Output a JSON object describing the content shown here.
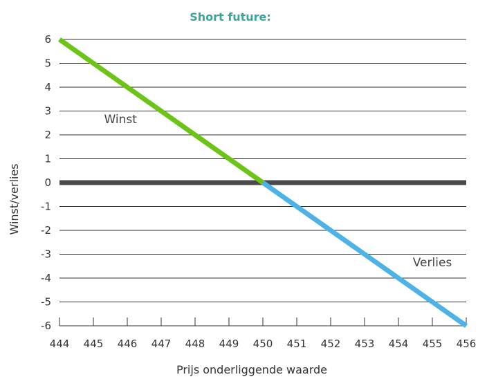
{
  "chart_data": {
    "type": "line",
    "title": "Short future:",
    "xlabel": "Prijs onderliggende waarde",
    "ylabel": "Winst/verlies",
    "x_ticks": [
      444,
      445,
      446,
      447,
      448,
      449,
      450,
      451,
      452,
      453,
      454,
      455,
      456
    ],
    "y_ticks": [
      6,
      5,
      4,
      3,
      2,
      1,
      0,
      -1,
      -2,
      -3,
      -4,
      -5,
      -6
    ],
    "xlim": [
      444,
      456
    ],
    "ylim": [
      -6,
      6
    ],
    "grid": "horizontal",
    "series": [
      {
        "points": [
          [
            444,
            6
          ],
          [
            450,
            0
          ]
        ],
        "color": "#6cc417"
      },
      {
        "points": [
          [
            450,
            0
          ],
          [
            456,
            -6
          ]
        ],
        "color": "#4db3e6"
      }
    ],
    "zero_line_color": "#4a4a4a",
    "annotations": [
      {
        "text": "Winst",
        "x": 445.8,
        "y": 2.5
      },
      {
        "text": "Verlies",
        "x": 455.0,
        "y": -3.5
      }
    ],
    "colors": {
      "title": "#3aa59a",
      "grid": "#333333",
      "axis": "#333333"
    }
  }
}
